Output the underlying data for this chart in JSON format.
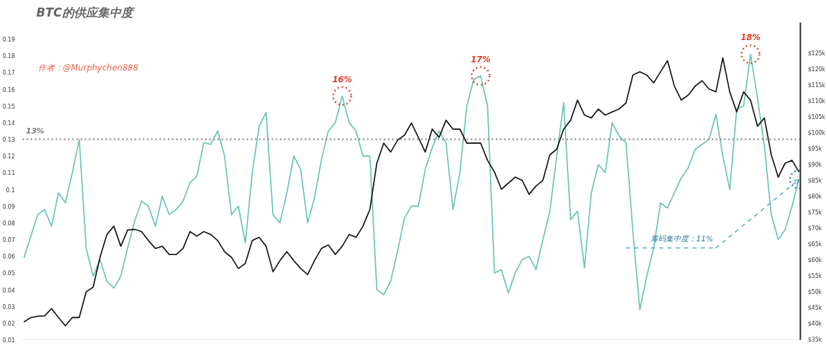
{
  "chart_data": {
    "type": "line",
    "title": "BTC的供应集中度",
    "subtitle": "作者：@Murphychen888",
    "categories": [
      null,
      null,
      null,
      null,
      null,
      null,
      null,
      null,
      null,
      null,
      null,
      null,
      null,
      null,
      null,
      null,
      null,
      null,
      null,
      null,
      null,
      null,
      null,
      null,
      null,
      null,
      null,
      null,
      null,
      null,
      null,
      null,
      null,
      null,
      null,
      null,
      null,
      null,
      null,
      null,
      null,
      null,
      null,
      null,
      null,
      null,
      null,
      null,
      null,
      null,
      null,
      null,
      null,
      null,
      null,
      null,
      null,
      null,
      null,
      null,
      null,
      null,
      null,
      null,
      null,
      null,
      null,
      null,
      null,
      null,
      null,
      null,
      null,
      null,
      null,
      null,
      null,
      null,
      null,
      null,
      null,
      null,
      null,
      null,
      null,
      null,
      null,
      null,
      null,
      null,
      null,
      null,
      null,
      null,
      null,
      null,
      null,
      null,
      null,
      null,
      null,
      null,
      null,
      null,
      null,
      null,
      null,
      null,
      null,
      null,
      null,
      null,
      null
    ],
    "series": [
      {
        "color": "#6cc5b8",
        "axis": "y",
        "values": [
          0.059,
          0.072,
          0.085,
          0.088,
          0.078,
          0.098,
          0.092,
          0.11,
          0.13,
          0.065,
          0.048,
          0.058,
          0.045,
          0.041,
          0.048,
          0.065,
          0.081,
          0.093,
          0.09,
          0.078,
          0.096,
          0.085,
          0.088,
          0.093,
          0.104,
          0.108,
          0.128,
          0.127,
          0.135,
          0.12,
          0.085,
          0.09,
          0.068,
          0.11,
          0.138,
          0.146,
          0.085,
          0.08,
          0.098,
          0.12,
          0.112,
          0.08,
          0.095,
          0.118,
          0.135,
          0.14,
          0.156,
          0.14,
          0.135,
          0.12,
          0.12,
          0.04,
          0.037,
          0.045,
          0.063,
          0.083,
          0.09,
          0.09,
          0.112,
          0.125,
          0.135,
          0.128,
          0.088,
          0.11,
          0.15,
          0.166,
          0.168,
          0.15,
          0.05,
          0.052,
          0.038,
          0.05,
          0.058,
          0.06,
          0.052,
          0.07,
          0.087,
          0.12,
          0.152,
          0.082,
          0.087,
          0.053,
          0.098,
          0.115,
          0.11,
          0.14,
          0.132,
          0.128,
          0.075,
          0.028,
          0.048,
          0.065,
          0.092,
          0.089,
          0.098,
          0.107,
          0.113,
          0.124,
          0.127,
          0.13,
          0.145,
          0.12,
          0.1,
          0.148,
          0.15,
          0.181,
          0.155,
          0.126,
          0.085,
          0.07,
          0.076,
          0.09,
          0.106
        ]
      },
      {
        "color": "#1a1a1a",
        "axis": "y2",
        "values": [
          40.6,
          42.0,
          42.4,
          42.5,
          44.8,
          42.0,
          39.4,
          42.0,
          42.0,
          50.1,
          51.5,
          60.9,
          68.1,
          70.7,
          64.4,
          69.5,
          69.7,
          69.0,
          66.2,
          63.7,
          64.4,
          61.8,
          61.8,
          63.7,
          69.0,
          67.6,
          69.0,
          68.1,
          66.2,
          62.7,
          60.9,
          57.4,
          59.0,
          66.2,
          67.2,
          64.4,
          56.4,
          59.9,
          62.7,
          59.9,
          57.4,
          55.5,
          59.9,
          63.7,
          64.8,
          61.8,
          64.4,
          68.1,
          67.2,
          70.7,
          76.0,
          90.5,
          96.8,
          94.0,
          97.7,
          99.3,
          103.1,
          98.6,
          94.0,
          101.2,
          98.6,
          104.0,
          101.2,
          101.2,
          96.8,
          96.8,
          96.8,
          91.4,
          87.7,
          82.3,
          84.2,
          86.1,
          85.1,
          80.7,
          83.3,
          85.1,
          93.1,
          94.9,
          101.2,
          104.0,
          110.3,
          105.6,
          104.7,
          107.5,
          105.6,
          106.6,
          107.5,
          109.4,
          118.2,
          119.2,
          118.2,
          115.7,
          119.2,
          122.7,
          114.7,
          110.3,
          111.9,
          114.7,
          116.4,
          113.8,
          112.9,
          123.6,
          112.9,
          106.6,
          112.9,
          110.3,
          102.1,
          104.7,
          93.1,
          86.1,
          90.5,
          91.4,
          87.7
        ]
      }
    ],
    "ylim": [
      0.01,
      0.2
    ],
    "yticks": [
      0.01,
      0.02,
      0.03,
      0.04,
      0.05,
      0.06,
      0.07,
      0.08,
      0.09,
      0.1,
      0.11,
      0.12,
      0.13,
      0.14,
      0.15,
      0.16,
      0.17,
      0.18,
      0.19
    ],
    "y2lim": [
      35,
      134.7
    ],
    "y2ticks": [
      {
        "value": 35,
        "label": "$35k"
      },
      {
        "value": 40,
        "label": "$40k"
      },
      {
        "value": 45,
        "label": "$45k"
      },
      {
        "value": 50,
        "label": "$50k"
      },
      {
        "value": 55,
        "label": "$55k"
      },
      {
        "value": 60,
        "label": "$60k"
      },
      {
        "value": 65,
        "label": "$65k"
      },
      {
        "value": 70,
        "label": "$70k"
      },
      {
        "value": 75,
        "label": "$75k"
      },
      {
        "value": 80,
        "label": "$80k"
      },
      {
        "value": 85,
        "label": "$85k"
      },
      {
        "value": 90,
        "label": "$90k"
      },
      {
        "value": 95,
        "label": "$95k"
      },
      {
        "value": 100,
        "label": "$100k"
      },
      {
        "value": 105,
        "label": "$105k"
      },
      {
        "value": 110,
        "label": "$110k"
      },
      {
        "value": 115,
        "label": "$115k"
      },
      {
        "value": 120,
        "label": "$120k"
      },
      {
        "value": 125,
        "label": "$125k"
      }
    ],
    "ref_lines": [
      {
        "axis": "y",
        "value": 0.13,
        "label": "13%",
        "color": "#888888",
        "line_style": "dotted"
      }
    ],
    "annotations": [
      {
        "text": "16%",
        "y": 0.156
      },
      {
        "text": "17%",
        "y": 0.168
      },
      {
        "text": "18%",
        "y": 0.181
      },
      "筹码集中度：11%"
    ],
    "tick_labels": "y",
    "grid": false,
    "marker": "none",
    "line_style": "solid"
  }
}
